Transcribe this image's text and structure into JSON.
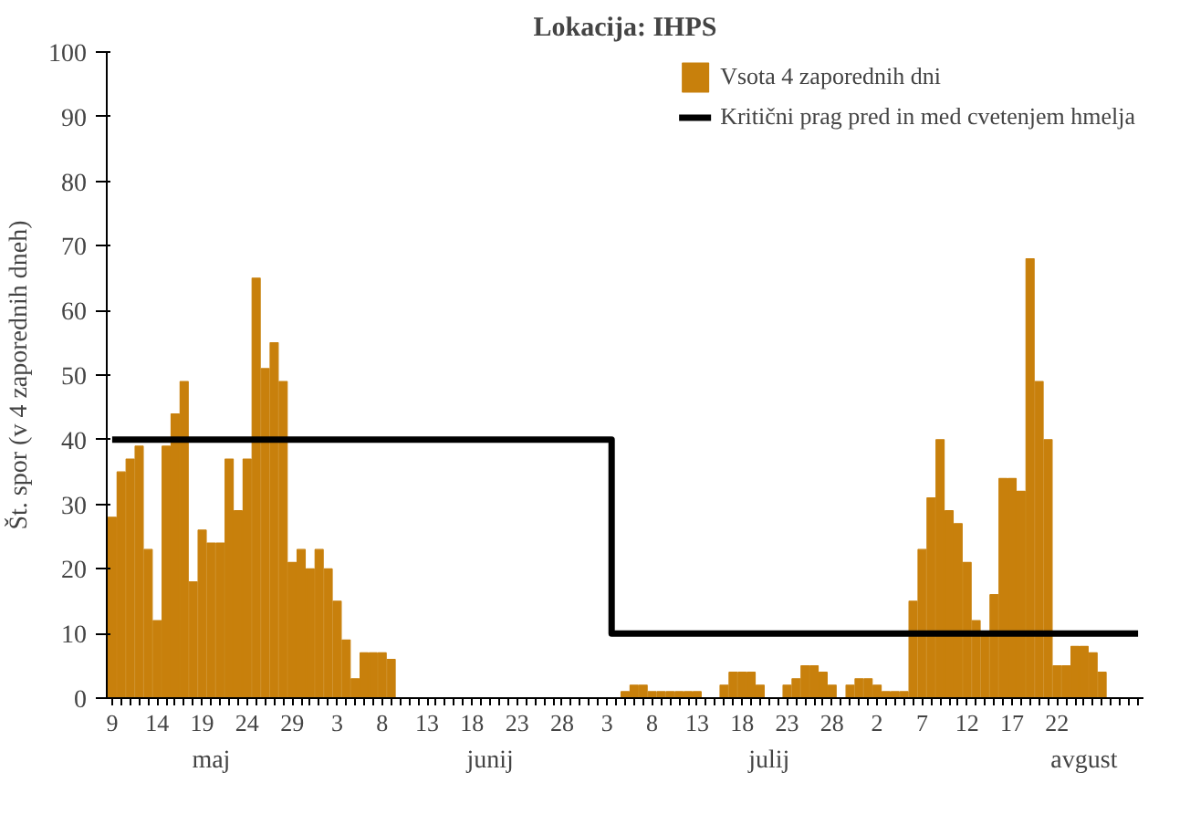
{
  "chart_data": {
    "type": "bar",
    "title": "Lokacija: IHPS",
    "ylabel": "Št. spor (v 4 zaporednih dneh)",
    "annotations": [
      "maj",
      "junij",
      "julij",
      "avgust"
    ],
    "categories": [
      "9",
      null,
      null,
      null,
      null,
      "14",
      null,
      null,
      null,
      null,
      "19",
      null,
      null,
      null,
      null,
      "24",
      null,
      null,
      null,
      null,
      "29",
      null,
      null,
      null,
      null,
      "3",
      null,
      null,
      null,
      null,
      "8",
      null,
      null,
      null,
      null,
      "13",
      null,
      null,
      null,
      null,
      "18",
      null,
      null,
      null,
      null,
      "23",
      null,
      null,
      null,
      null,
      "28",
      null,
      null,
      null,
      null,
      "3",
      null,
      null,
      null,
      null,
      "8",
      null,
      null,
      null,
      null,
      "13",
      null,
      null,
      null,
      null,
      "18",
      null,
      null,
      null,
      null,
      "23",
      null,
      null,
      null,
      null,
      "28",
      null,
      null,
      null,
      null,
      "2",
      null,
      null,
      null,
      null,
      "7",
      null,
      null,
      null,
      null,
      "12",
      null,
      null,
      null,
      null,
      "17",
      null,
      null,
      null,
      null,
      "22",
      null,
      null,
      null,
      null,
      null,
      null,
      null,
      null,
      null
    ],
    "series": [
      {
        "name": "Vsota 4 zaporednih dni",
        "color": "#c8800c",
        "values": [
          28,
          35,
          37,
          39,
          23,
          12,
          39,
          44,
          49,
          18,
          26,
          24,
          24,
          37,
          29,
          37,
          65,
          51,
          55,
          49,
          21,
          23,
          20,
          23,
          20,
          15,
          9,
          3,
          7,
          7,
          7,
          6,
          0,
          0,
          0,
          0,
          0,
          0,
          0,
          0,
          0,
          0,
          0,
          0,
          0,
          0,
          0,
          0,
          0,
          0,
          0,
          0,
          0,
          0,
          0,
          0,
          0,
          1,
          2,
          2,
          1,
          1,
          1,
          1,
          1,
          1,
          0,
          0,
          2,
          4,
          4,
          4,
          2,
          0,
          0,
          2,
          3,
          5,
          5,
          4,
          2,
          0,
          2,
          3,
          3,
          2,
          1,
          1,
          1,
          15,
          23,
          31,
          40,
          29,
          27,
          21,
          12,
          10,
          16,
          34,
          34,
          32,
          68,
          49,
          40,
          5,
          5,
          8,
          8,
          7,
          4,
          0,
          0,
          0,
          0
        ]
      },
      {
        "name": "Kritični prag pred in med cvetenjem hmelja",
        "type": "step",
        "color": "#000000",
        "values": [
          40,
          40,
          40,
          40,
          40,
          40,
          40,
          40,
          40,
          40,
          40,
          40,
          40,
          40,
          40,
          40,
          40,
          40,
          40,
          40,
          40,
          40,
          40,
          40,
          40,
          40,
          40,
          40,
          40,
          40,
          40,
          40,
          40,
          40,
          40,
          40,
          40,
          40,
          40,
          40,
          40,
          40,
          40,
          40,
          40,
          40,
          40,
          40,
          40,
          40,
          40,
          40,
          40,
          40,
          40,
          40,
          10,
          10,
          10,
          10,
          10,
          10,
          10,
          10,
          10,
          10,
          10,
          10,
          10,
          10,
          10,
          10,
          10,
          10,
          10,
          10,
          10,
          10,
          10,
          10,
          10,
          10,
          10,
          10,
          10,
          10,
          10,
          10,
          10,
          10,
          10,
          10,
          10,
          10,
          10,
          10,
          10,
          10,
          10,
          10,
          10,
          10,
          10,
          10,
          10,
          10,
          10,
          10,
          10,
          10,
          10,
          10,
          10,
          10,
          10
        ]
      }
    ],
    "ylim": [
      0,
      100
    ],
    "yticks": [
      0,
      10,
      20,
      30,
      40,
      50,
      60,
      70,
      80,
      90,
      100
    ],
    "legend": "top right"
  }
}
